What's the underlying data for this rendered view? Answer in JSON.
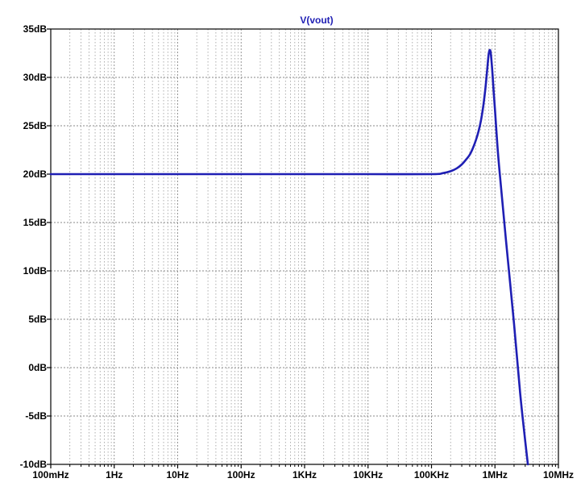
{
  "chart_data": {
    "type": "line",
    "title": "",
    "xlabel": "",
    "ylabel": "",
    "x_scale": "log",
    "x_unit": "Hz",
    "xlim": [
      0.1,
      10000000
    ],
    "ylim": [
      -10,
      35
    ],
    "x_tick_values": [
      0.1,
      1,
      10,
      100,
      1000,
      10000,
      100000,
      1000000,
      10000000
    ],
    "x_tick_labels": [
      "100mHz",
      "1Hz",
      "10Hz",
      "100Hz",
      "1KHz",
      "10KHz",
      "100KHz",
      "1MHz",
      "10MHz"
    ],
    "y_tick_values": [
      35,
      30,
      25,
      20,
      15,
      10,
      5,
      0,
      -5,
      -10
    ],
    "y_tick_labels": [
      "35dB",
      "30dB",
      "25dB",
      "20dB",
      "15dB",
      "10dB",
      "5dB",
      "0dB",
      "-5dB",
      "-10dB"
    ],
    "grid": true,
    "series": [
      {
        "name": "V(vout)",
        "color": "#1f1fb4",
        "x": [
          0.1,
          1,
          10,
          100,
          1000,
          10000,
          100000,
          150000,
          200000,
          250000,
          300000,
          350000,
          400000,
          450000,
          500000,
          550000,
          600000,
          650000,
          700000,
          750000,
          800000,
          850000,
          900000,
          950000,
          1000000,
          1100000,
          1200000,
          1500000,
          2000000,
          2500000,
          3000000,
          3300000
        ],
        "y": [
          20.0,
          20.0,
          20.0,
          20.0,
          20.0,
          20.0,
          20.0,
          20.1,
          20.3,
          20.6,
          21.0,
          21.5,
          22.0,
          22.7,
          23.5,
          24.4,
          25.5,
          26.9,
          28.6,
          30.6,
          32.5,
          32.7,
          31.0,
          28.7,
          26.7,
          22.7,
          19.8,
          13.0,
          4.5,
          -2.7,
          -7.6,
          -10.0
        ]
      }
    ]
  }
}
